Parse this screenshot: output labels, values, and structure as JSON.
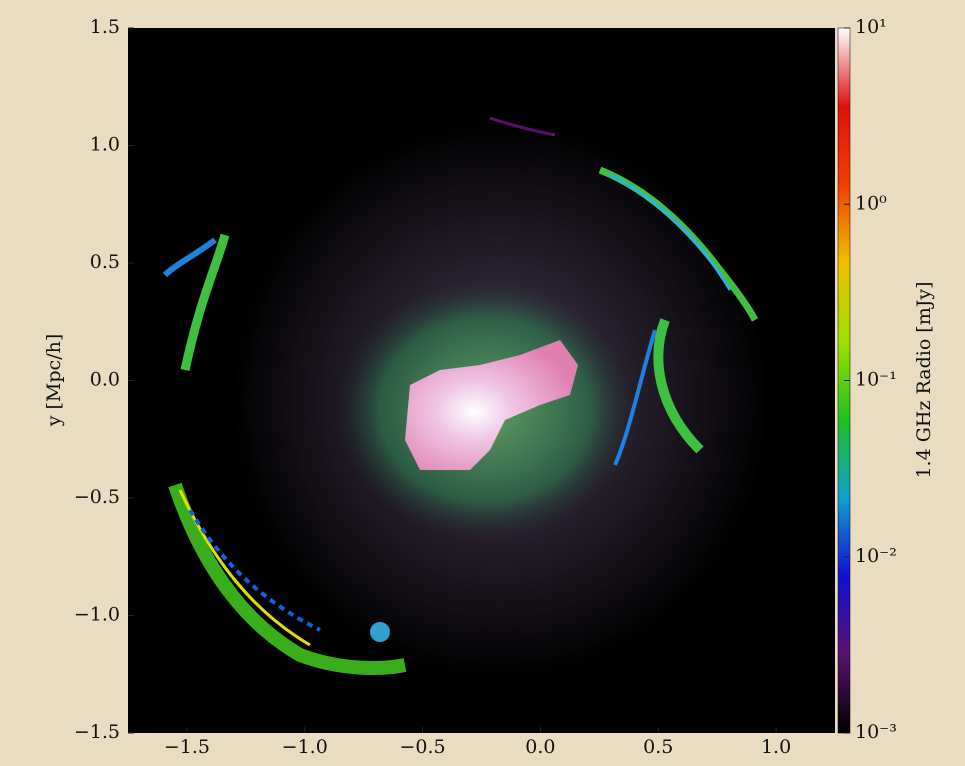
{
  "chart_data": {
    "type": "image",
    "ylabel": "y [Mpc/h]",
    "colorbar_label": "1.4 GHz Radio [mJy]",
    "xlim": [
      -1.75,
      1.25
    ],
    "ylim": [
      -1.5,
      1.5
    ],
    "xticks": [
      {
        "value": -1.5,
        "label": "−1.5"
      },
      {
        "value": -1.0,
        "label": "−1.0"
      },
      {
        "value": -0.5,
        "label": "−0.5"
      },
      {
        "value": 0.0,
        "label": "0.0"
      },
      0.5,
      {
        "value": 1.0,
        "label": "1.0"
      }
    ],
    "yticks": [
      {
        "value": -1.5,
        "label": "−1.5"
      },
      {
        "value": -1.0,
        "label": "−1.0"
      },
      {
        "value": -0.5,
        "label": "−0.5"
      },
      {
        "value": 0.0,
        "label": "0.0"
      },
      0.5,
      {
        "value": 1.0,
        "label": "1.0"
      },
      1.5
    ],
    "colorbar_lim": [
      0.001,
      10
    ],
    "colorbar_log": true,
    "colorbar_ticks": [
      {
        "value": 0.001,
        "label": "10⁻³"
      },
      {
        "value": 0.01,
        "label": "10⁻²"
      },
      {
        "value": 0.1,
        "label": "10⁻¹"
      },
      {
        "value": 1,
        "label": "10⁰"
      },
      {
        "value": 10,
        "label": "10¹"
      }
    ],
    "colormap": [
      "#000000",
      "#5a1070",
      "#1010d0",
      "#10a0d0",
      "#20c020",
      "#a0e000",
      "#f0c000",
      "#f04000",
      "#e01010",
      "#ffffff"
    ]
  }
}
